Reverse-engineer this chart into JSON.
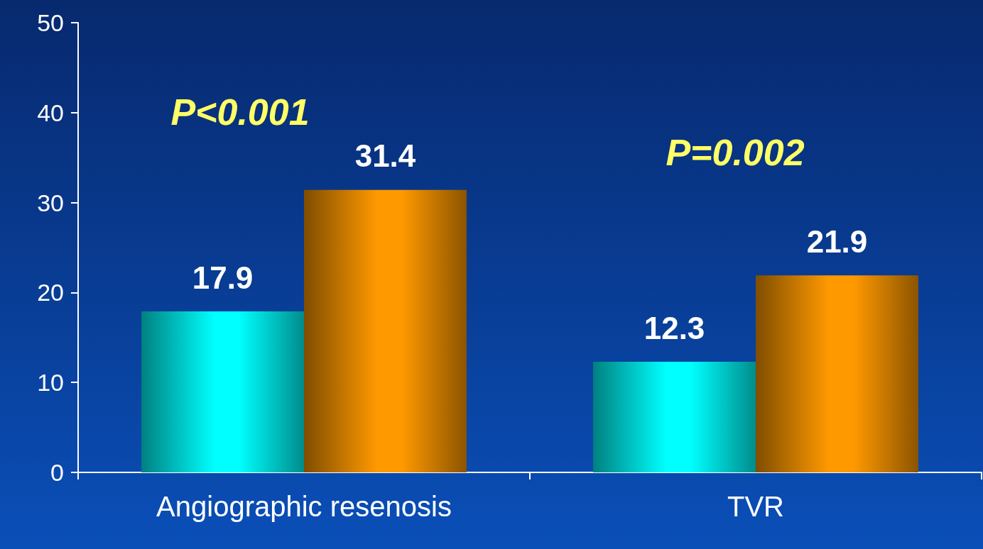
{
  "chart_data": {
    "type": "bar",
    "categories": [
      "Angiographic resenosis",
      "TVR"
    ],
    "series": [
      {
        "color": "#00ffff",
        "values": [
          17.9,
          12.3
        ]
      },
      {
        "color": "#ff9900",
        "values": [
          31.4,
          21.9
        ]
      }
    ],
    "ylim": [
      0,
      50
    ],
    "yticks": [
      0,
      10,
      20,
      30,
      40,
      50
    ],
    "grid": false,
    "data_labels": true,
    "annotations": [
      "P<0.001",
      "P=0.002"
    ]
  }
}
